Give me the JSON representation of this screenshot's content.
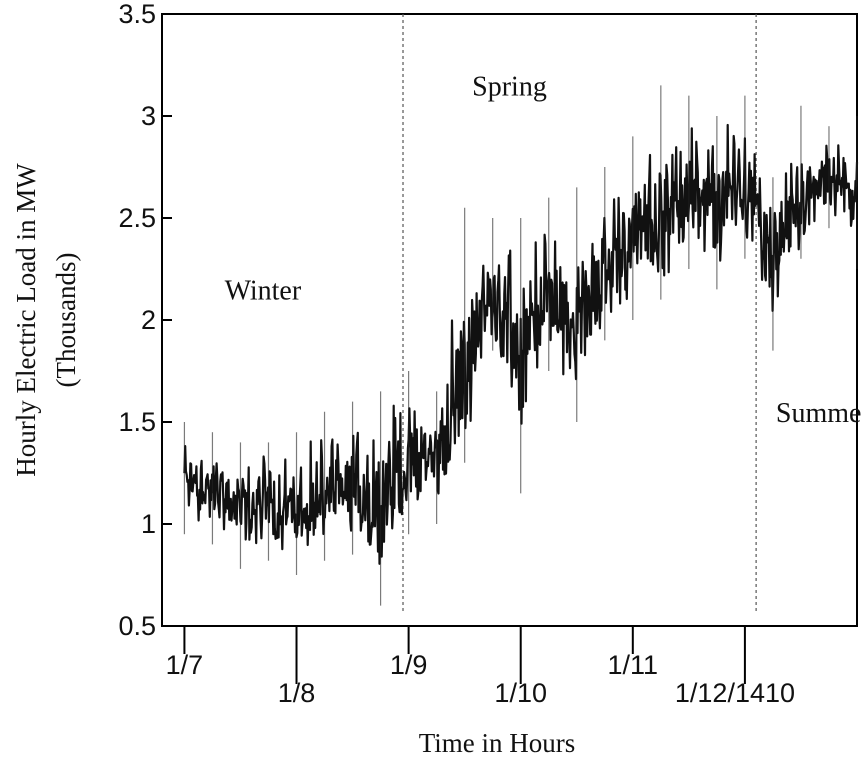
{
  "chart_data": {
    "type": "line",
    "xlabel": "Time in Hours",
    "ylabel": "Hourly Electric Load in MW",
    "ylabel_sub": "(Thousands)",
    "ylim": [
      0.5,
      3.5
    ],
    "y_ticks": [
      {
        "value": 0.5,
        "label": "0.5"
      },
      {
        "value": 1,
        "label": "1"
      },
      {
        "value": 1.5,
        "label": "1.5"
      },
      {
        "value": 2,
        "label": "2"
      },
      {
        "value": 2.5,
        "label": "2.5"
      },
      {
        "value": 3,
        "label": "3"
      },
      {
        "value": 3.5,
        "label": "3.5"
      }
    ],
    "xlim": [
      -0.2,
      6
    ],
    "x_ticks": [
      {
        "value": 0,
        "label": "1/7",
        "row": 1
      },
      {
        "value": 1,
        "label": "1/8",
        "row": 2
      },
      {
        "value": 2,
        "label": "1/9",
        "row": 1
      },
      {
        "value": 3,
        "label": "1/10",
        "row": 2
      },
      {
        "value": 4,
        "label": "1/11",
        "row": 1
      },
      {
        "value": 5,
        "label": "1/12/1410",
        "row": 2
      }
    ],
    "season_dividers": [
      1.95,
      5.1
    ],
    "season_labels": [
      {
        "text": "Winter",
        "x": 0.7,
        "y": 2.1
      },
      {
        "text": "Spring",
        "x": 2.9,
        "y": 3.1
      },
      {
        "text": "Summer",
        "x": 5.7,
        "y": 1.5
      }
    ],
    "series": [
      {
        "x": [
          0,
          0.25,
          0.5,
          0.75,
          1,
          1.25,
          1.5,
          1.75,
          2,
          2.25,
          2.5,
          2.75,
          3,
          3.25,
          3.5,
          3.75,
          4,
          4.25,
          4.5,
          4.75,
          5,
          5.25,
          5.5,
          5.75,
          6
        ],
        "y": [
          1.25,
          1.2,
          1.1,
          1.15,
          1.1,
          1.15,
          1.2,
          1.25,
          1.35,
          1.4,
          1.75,
          2.2,
          1.95,
          2.2,
          2.0,
          2.3,
          2.45,
          2.5,
          2.7,
          2.6,
          2.75,
          2.35,
          2.6,
          2.75,
          2.65
        ],
        "high": [
          1.5,
          1.45,
          1.4,
          1.4,
          1.45,
          1.55,
          1.6,
          1.65,
          1.75,
          1.65,
          2.55,
          2.5,
          2.5,
          2.6,
          2.65,
          2.75,
          2.9,
          3.15,
          3.1,
          3.0,
          3.1,
          2.7,
          3.05,
          2.95,
          3.0
        ],
        "low": [
          0.95,
          0.9,
          0.78,
          0.82,
          0.75,
          0.82,
          0.85,
          0.6,
          0.95,
          1.0,
          1.3,
          1.85,
          1.15,
          1.75,
          1.5,
          1.9,
          2.0,
          2.1,
          2.25,
          2.15,
          2.3,
          1.85,
          2.3,
          2.45,
          2.25
        ]
      }
    ]
  }
}
